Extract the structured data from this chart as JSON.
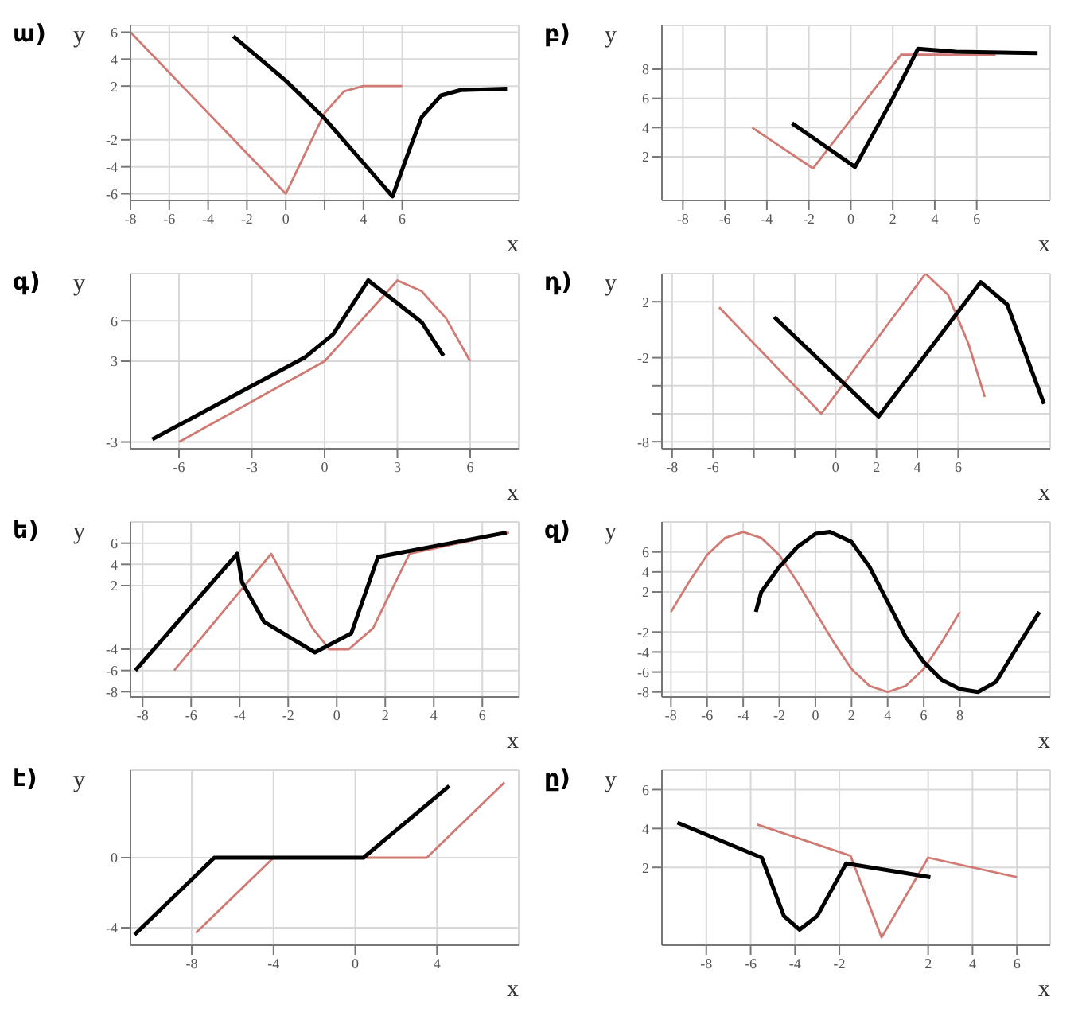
{
  "chart_data": [
    {
      "type": "line",
      "title": "ա)",
      "xlabel": "x",
      "ylabel": "y",
      "xlim": [
        -8,
        12
      ],
      "ylim": [
        -6.5,
        6.5
      ],
      "xticks": [
        -8,
        -6,
        -4,
        -2,
        0,
        {
          "value": 2,
          "label": null
        },
        4,
        6
      ],
      "yticks": [
        -6,
        -4,
        -2,
        2,
        4,
        6
      ],
      "grid": true,
      "series": [
        {
          "color": "#d07a74",
          "x": [
            -8,
            -4,
            0,
            1,
            2,
            3,
            4,
            6
          ],
          "values": [
            6,
            0,
            -6,
            -3,
            0,
            1.6,
            2,
            2
          ]
        },
        {
          "color": "#000000",
          "x": [
            -2.7,
            0,
            2,
            5.5,
            6.3,
            7,
            8,
            9,
            11.4
          ],
          "values": [
            5.7,
            2.4,
            -0.4,
            -6.2,
            -3,
            -0.3,
            1.3,
            1.7,
            1.8
          ]
        }
      ]
    },
    {
      "type": "line",
      "title": "բ)",
      "xlabel": "x",
      "ylabel": "y",
      "xlim": [
        -9,
        9.5
      ],
      "ylim": [
        -1,
        11
      ],
      "xticks": [
        -8,
        -6,
        -4,
        -2,
        0,
        2,
        4,
        6
      ],
      "yticks": [
        2,
        4,
        6,
        8
      ],
      "grid": true,
      "series": [
        {
          "color": "#d07a74",
          "x": [
            -4.7,
            -1.8,
            2.4,
            6.9
          ],
          "values": [
            4,
            1.2,
            9,
            9
          ]
        },
        {
          "color": "#000000",
          "x": [
            -2.8,
            0.2,
            2,
            3.2,
            5,
            8.9
          ],
          "values": [
            4.3,
            1.3,
            6,
            9.4,
            9.2,
            9.1
          ]
        }
      ]
    },
    {
      "type": "line",
      "title": "գ)",
      "xlabel": "x",
      "ylabel": "y",
      "xlim": [
        -8,
        8
      ],
      "ylim": [
        -3.5,
        9.5
      ],
      "xticks": [
        -6,
        -3,
        0,
        3,
        6
      ],
      "yticks": [
        -3,
        3,
        6
      ],
      "grid": true,
      "series": [
        {
          "color": "#d07a74",
          "x": [
            -6,
            -3,
            0,
            1,
            2,
            3,
            4,
            5,
            6
          ],
          "values": [
            -3,
            0,
            3,
            5,
            7,
            9,
            8.2,
            6.2,
            3
          ]
        },
        {
          "color": "#000000",
          "x": [
            -7.1,
            -4.2,
            -0.8,
            0.35,
            1.8,
            4,
            4.9
          ],
          "values": [
            -2.8,
            0,
            3.3,
            5,
            9,
            5.9,
            3.4
          ]
        }
      ]
    },
    {
      "type": "line",
      "title": "դ)",
      "xlabel": "x",
      "ylabel": "y",
      "xlim": [
        -8.5,
        10.5
      ],
      "ylim": [
        -8.5,
        4
      ],
      "xticks": [
        -8,
        -6,
        {
          "value": -4,
          "label": null
        },
        {
          "value": -2,
          "label": null
        },
        0,
        2,
        4,
        6
      ],
      "yticks": [
        -8,
        {
          "value": -6,
          "label": null
        },
        {
          "value": -4,
          "label": null
        },
        -2,
        2
      ],
      "grid": true,
      "series": [
        {
          "color": "#d07a74",
          "x": [
            -5.7,
            -0.7,
            4.4,
            5.5,
            6.5,
            7.3
          ],
          "values": [
            1.6,
            -6,
            4,
            2.5,
            -1,
            -4.8
          ]
        },
        {
          "color": "#000000",
          "x": [
            -3,
            2.1,
            7.1,
            8.4,
            10.2
          ],
          "values": [
            0.9,
            -6.2,
            3.4,
            1.8,
            -5.3
          ]
        }
      ]
    },
    {
      "type": "line",
      "title": "ե)",
      "xlabel": "x",
      "ylabel": "y",
      "xlim": [
        -8.5,
        7.5
      ],
      "ylim": [
        -8.5,
        8
      ],
      "xticks": [
        -8,
        -6,
        -4,
        -2,
        0,
        2,
        4,
        6
      ],
      "yticks": [
        -8,
        -6,
        -4,
        2,
        4,
        6
      ],
      "grid": true,
      "series": [
        {
          "color": "#d07a74",
          "x": [
            -6.7,
            -2.7,
            -1,
            -0.3,
            0.5,
            1.5,
            3,
            7.1
          ],
          "values": [
            -6,
            5,
            -2,
            -4,
            -4,
            -2,
            5,
            7
          ]
        },
        {
          "color": "#000000",
          "x": [
            -8.3,
            -4.1,
            -3.9,
            -3,
            -0.9,
            0.6,
            1.7,
            7
          ],
          "values": [
            -6,
            5,
            2.3,
            -1.4,
            -4.3,
            -2.5,
            4.7,
            7
          ]
        }
      ]
    },
    {
      "type": "line",
      "title": "զ)",
      "xlabel": "x",
      "ylabel": "y",
      "xlim": [
        -8.5,
        13
      ],
      "ylim": [
        -8.5,
        9
      ],
      "xticks": [
        -8,
        -6,
        -4,
        -2,
        0,
        2,
        4,
        6,
        8
      ],
      "yticks": [
        -8,
        -6,
        -4,
        -2,
        2,
        4,
        6
      ],
      "grid": true,
      "series": [
        {
          "color": "#d07a74",
          "x": [
            -8,
            -7,
            -6,
            -5,
            -4,
            -3,
            -2,
            -1,
            0,
            1,
            2,
            3,
            4,
            5,
            6,
            7,
            8
          ],
          "values": [
            0,
            3,
            5.7,
            7.4,
            8,
            7.4,
            5.7,
            3,
            0,
            -3,
            -5.7,
            -7.4,
            -8,
            -7.4,
            -5.7,
            -3,
            0
          ]
        },
        {
          "color": "#000000",
          "x": [
            -3.3,
            -3,
            -2,
            -1,
            0,
            0.8,
            2,
            3,
            4,
            5,
            6,
            7,
            8,
            9,
            10,
            11,
            12.4
          ],
          "values": [
            0,
            2,
            4.5,
            6.5,
            7.8,
            8,
            7,
            4.5,
            1,
            -2.5,
            -5,
            -6.8,
            -7.7,
            -8,
            -7,
            -4,
            0
          ]
        }
      ]
    },
    {
      "type": "line",
      "title": "է)",
      "xlabel": "x",
      "ylabel": "y",
      "xlim": [
        -11,
        8
      ],
      "ylim": [
        -5,
        5
      ],
      "xticks": [
        -8,
        -4,
        0,
        4
      ],
      "yticks": [
        -4,
        0
      ],
      "grid": true,
      "series": [
        {
          "color": "#d07a74",
          "x": [
            -7.8,
            -4,
            3.5,
            7.3
          ],
          "values": [
            -4.3,
            0,
            0,
            4.3
          ]
        },
        {
          "color": "#000000",
          "x": [
            -10.8,
            -6.9,
            0.4,
            4.6
          ],
          "values": [
            -4.4,
            0,
            0,
            4.1
          ]
        }
      ]
    },
    {
      "type": "line",
      "title": "ը)",
      "xlabel": "x",
      "ylabel": "y",
      "xlim": [
        -10,
        7.5
      ],
      "ylim": [
        -2,
        7
      ],
      "xticks": [
        -8,
        -6,
        -4,
        -2,
        2,
        4,
        6
      ],
      "yticks": [
        2,
        4,
        6
      ],
      "grid": true,
      "series": [
        {
          "color": "#d07a74",
          "x": [
            -5.7,
            -1.5,
            -0.1,
            2,
            6
          ],
          "values": [
            4.2,
            2.6,
            -1.6,
            2.5,
            1.5
          ]
        },
        {
          "color": "#000000",
          "x": [
            -9.3,
            -5.5,
            -4.5,
            -3.8,
            -3,
            -1.7,
            2.1
          ],
          "values": [
            4.3,
            2.5,
            -0.5,
            -1.2,
            -0.5,
            2.2,
            1.5
          ]
        }
      ]
    }
  ]
}
